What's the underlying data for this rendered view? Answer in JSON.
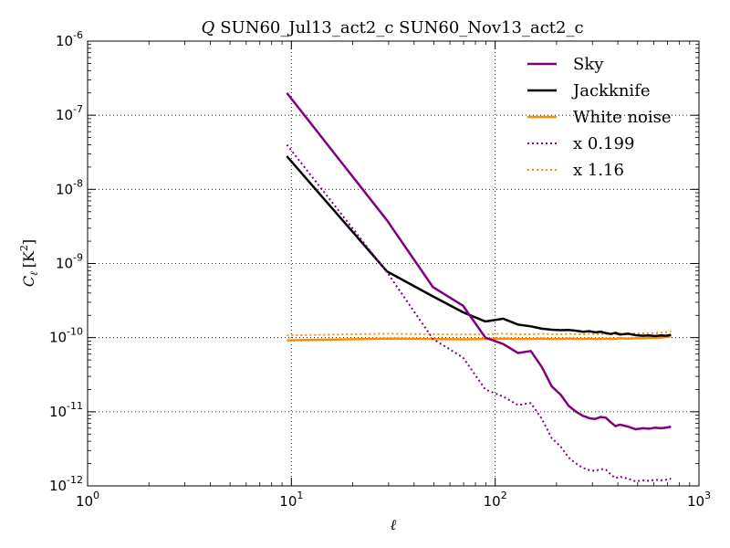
{
  "chart_data": {
    "type": "line",
    "title_symbol": "Q",
    "title_text": "SUN60_Jul13_act2_c SUN60_Nov13_act2_c",
    "xlabel": "ℓ",
    "ylabel": "C_ℓ [K²]",
    "ylabel_parts": {
      "c": "C",
      "sub": "ℓ",
      "units": "[K",
      "unit_sup": "2",
      "close": "]"
    },
    "x_scale": "log",
    "y_scale": "log",
    "xlim": [
      1,
      1000
    ],
    "ylim": [
      1e-12,
      1e-06
    ],
    "grid": true,
    "legend_position": "top-right",
    "x_ticks": [
      {
        "value": 1,
        "base": "10",
        "exp": "0"
      },
      {
        "value": 10,
        "base": "10",
        "exp": "1"
      },
      {
        "value": 100,
        "base": "10",
        "exp": "2"
      },
      {
        "value": 1000,
        "base": "10",
        "exp": "3"
      }
    ],
    "y_ticks": [
      {
        "value": 1e-12,
        "base": "10",
        "exp": "-12"
      },
      {
        "value": 1e-11,
        "base": "10",
        "exp": "-11"
      },
      {
        "value": 1e-10,
        "base": "10",
        "exp": "-10"
      },
      {
        "value": 1e-09,
        "base": "10",
        "exp": "-9"
      },
      {
        "value": 1e-08,
        "base": "10",
        "exp": "-8"
      },
      {
        "value": 1e-07,
        "base": "10",
        "exp": "-7"
      },
      {
        "value": 1e-06,
        "base": "10",
        "exp": "-6"
      }
    ],
    "series": [
      {
        "name": "Sky",
        "color": "#800080",
        "style": "solid",
        "x": [
          9.5,
          29.5,
          49.5,
          69.5,
          89.5,
          109.5,
          129.5,
          149.5,
          169.5,
          189.5,
          209.5,
          229.5,
          249.5,
          269.5,
          289.5,
          309.5,
          329.5,
          349.5,
          369.5,
          389.5,
          409.5,
          449.5,
          489.5,
          529.5,
          569.5,
          609.5,
          649.5,
          689.5,
          729.5
        ],
        "y": [
          2e-07,
          3.8e-09,
          4.8e-10,
          2.7e-10,
          1e-10,
          8.2e-11,
          6.2e-11,
          6.6e-11,
          4e-11,
          2.2e-11,
          1.7e-11,
          1.2e-11,
          1e-11,
          8.8e-12,
          8.2e-12,
          8e-12,
          8.5e-12,
          8.3e-12,
          7.2e-12,
          6.4e-12,
          6.7e-12,
          6.3e-12,
          5.8e-12,
          6e-12,
          5.9e-12,
          6.1e-12,
          6e-12,
          6.1e-12,
          6.3e-12
        ]
      },
      {
        "name": "Jackknife",
        "color": "#000000",
        "style": "solid",
        "x": [
          9.5,
          29.5,
          49.5,
          69.5,
          89.5,
          109.5,
          129.5,
          149.5,
          169.5,
          189.5,
          209.5,
          229.5,
          249.5,
          269.5,
          289.5,
          309.5,
          329.5,
          349.5,
          369.5,
          389.5,
          409.5,
          449.5,
          489.5,
          529.5,
          569.5,
          609.5,
          649.5,
          689.5,
          729.5
        ],
        "y": [
          2.8e-08,
          7.8e-10,
          3.6e-10,
          2.2e-10,
          1.65e-10,
          1.8e-10,
          1.5e-10,
          1.42e-10,
          1.32e-10,
          1.28e-10,
          1.26e-10,
          1.27e-10,
          1.24e-10,
          1.2e-10,
          1.22e-10,
          1.18e-10,
          1.2e-10,
          1.15e-10,
          1.12e-10,
          1.16e-10,
          1.1e-10,
          1.13e-10,
          1.08e-10,
          1.06e-10,
          1.07e-10,
          1.05e-10,
          1.07e-10,
          1.06e-10,
          1.09e-10
        ]
      },
      {
        "name": "White noise",
        "color": "#ff8c00",
        "style": "solid",
        "x": [
          9.5,
          29.5,
          49.5,
          69.5,
          89.5,
          109.5,
          129.5,
          149.5,
          169.5,
          189.5,
          209.5,
          229.5,
          249.5,
          269.5,
          289.5,
          309.5,
          329.5,
          349.5,
          369.5,
          389.5,
          409.5,
          449.5,
          489.5,
          529.5,
          569.5,
          609.5,
          649.5,
          689.5,
          729.5
        ],
        "y": [
          9.2e-11,
          9.7e-11,
          9.6e-11,
          9.5e-11,
          9.6e-11,
          9.7e-11,
          9.6e-11,
          9.6e-11,
          9.7e-11,
          9.6e-11,
          9.6e-11,
          9.7e-11,
          9.6e-11,
          9.6e-11,
          9.7e-11,
          9.6e-11,
          9.6e-11,
          9.7e-11,
          9.6e-11,
          9.6e-11,
          9.8e-11,
          9.7e-11,
          9.8e-11,
          9.8e-11,
          9.9e-11,
          9.9e-11,
          1e-10,
          1.02e-10,
          1.04e-10
        ]
      },
      {
        "name": "x 0.199",
        "color": "#800080",
        "style": "dotted",
        "x": [
          9.5,
          29.5,
          49.5,
          69.5,
          89.5,
          109.5,
          129.5,
          149.5,
          169.5,
          189.5,
          209.5,
          229.5,
          249.5,
          269.5,
          289.5,
          309.5,
          329.5,
          349.5,
          369.5,
          389.5,
          409.5,
          449.5,
          489.5,
          529.5,
          569.5,
          609.5,
          649.5,
          689.5,
          729.5
        ],
        "y": [
          4e-08,
          7.6e-10,
          9.6e-11,
          5.4e-11,
          2e-11,
          1.6e-11,
          1.23e-11,
          1.31e-11,
          8e-12,
          4.4e-12,
          3.4e-12,
          2.4e-12,
          2e-12,
          1.75e-12,
          1.63e-12,
          1.59e-12,
          1.69e-12,
          1.65e-12,
          1.43e-12,
          1.27e-12,
          1.33e-12,
          1.25e-12,
          1.15e-12,
          1.19e-12,
          1.17e-12,
          1.21e-12,
          1.19e-12,
          1.21e-12,
          1.25e-12
        ]
      },
      {
        "name": "x 1.16",
        "color": "#ff8c00",
        "style": "dotted",
        "x": [
          9.5,
          29.5,
          49.5,
          69.5,
          89.5,
          109.5,
          129.5,
          149.5,
          169.5,
          189.5,
          209.5,
          229.5,
          249.5,
          269.5,
          289.5,
          309.5,
          329.5,
          349.5,
          369.5,
          389.5,
          409.5,
          449.5,
          489.5,
          529.5,
          569.5,
          609.5,
          649.5,
          689.5,
          729.5
        ],
        "y": [
          1.07e-10,
          1.13e-10,
          1.11e-10,
          1.1e-10,
          1.11e-10,
          1.13e-10,
          1.11e-10,
          1.11e-10,
          1.13e-10,
          1.11e-10,
          1.11e-10,
          1.13e-10,
          1.11e-10,
          1.11e-10,
          1.13e-10,
          1.11e-10,
          1.11e-10,
          1.13e-10,
          1.11e-10,
          1.11e-10,
          1.14e-10,
          1.13e-10,
          1.14e-10,
          1.14e-10,
          1.15e-10,
          1.15e-10,
          1.16e-10,
          1.18e-10,
          1.21e-10
        ]
      }
    ]
  }
}
